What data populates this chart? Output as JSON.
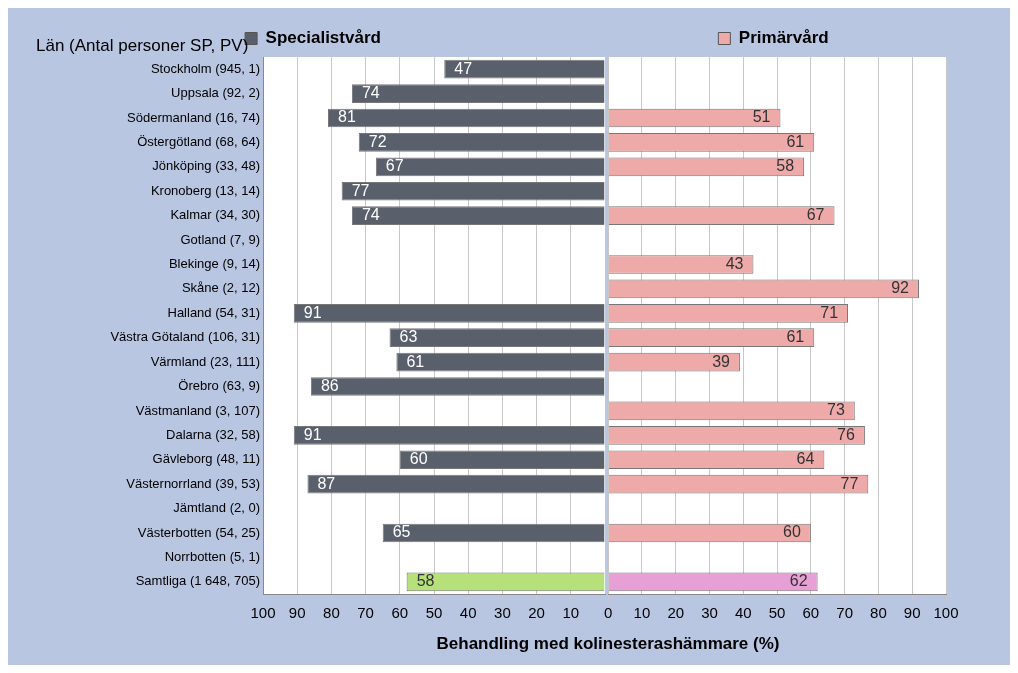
{
  "chart_data": [
    {
      "type": "bar",
      "orientation": "horizontal",
      "ylabel": "Län (Antal personer SP, PV)",
      "xlabel": "Behandling med kolinesterashämmare (%)",
      "categories": [
        "Stockholm (945, 1)",
        "Uppsala (92, 2)",
        "Södermanland (16, 74)",
        "Östergötland (68, 64)",
        "Jönköping (33, 48)",
        "Kronoberg (13, 14)",
        "Kalmar (34, 30)",
        "Gotland (7, 9)",
        "Blekinge (9, 14)",
        "Skåne (2, 12)",
        "Halland (54, 31)",
        "Västra Götaland (106, 31)",
        "Värmland (23, 111)",
        "Örebro (63, 9)",
        "Västmanland (3, 107)",
        "Dalarna (32, 58)",
        "Gävleborg (48, 11)",
        "Västernorrland (39, 53)",
        "Jämtland (2, 0)",
        "Västerbotten (54, 25)",
        "Norrbotten (5, 1)",
        "Samtliga (1 648, 705)"
      ],
      "series": [
        {
          "name": "Specialistvård",
          "color": "#5a606b",
          "colors": [
            "#5a606b",
            "#5a606b",
            "#5a606b",
            "#5a606b",
            "#5a606b",
            "#5a606b",
            "#5a606b",
            "#5a606b",
            "#5a606b",
            "#5a606b",
            "#5a606b",
            "#5a606b",
            "#5a606b",
            "#5a606b",
            "#5a606b",
            "#5a606b",
            "#5a606b",
            "#5a606b",
            "#5a606b",
            "#5a606b",
            "#5a606b",
            "#b5e07a"
          ],
          "values": [
            47,
            74,
            81,
            72,
            67,
            77,
            74,
            null,
            null,
            null,
            91,
            63,
            61,
            86,
            null,
            91,
            60,
            87,
            null,
            65,
            null,
            58
          ]
        }
      ],
      "xlim": [
        100,
        0
      ],
      "xticks": [
        100,
        90,
        80,
        70,
        60,
        50,
        40,
        30,
        20,
        10,
        {
          "value": 0,
          "label": null
        }
      ],
      "data_labels": true,
      "grid": "x",
      "legend": "top"
    },
    {
      "type": "bar",
      "orientation": "horizontal",
      "series": [
        {
          "name": "Primärvård",
          "color": "#eeaaa9",
          "colors": [
            "#eeaaa9",
            "#eeaaa9",
            "#eeaaa9",
            "#eeaaa9",
            "#eeaaa9",
            "#eeaaa9",
            "#eeaaa9",
            "#eeaaa9",
            "#eeaaa9",
            "#eeaaa9",
            "#eeaaa9",
            "#eeaaa9",
            "#eeaaa9",
            "#eeaaa9",
            "#eeaaa9",
            "#eeaaa9",
            "#eeaaa9",
            "#eeaaa9",
            "#eeaaa9",
            "#eeaaa9",
            "#eeaaa9",
            "#e6a0d6"
          ],
          "values": [
            null,
            null,
            51,
            61,
            58,
            null,
            67,
            null,
            43,
            92,
            71,
            61,
            39,
            null,
            73,
            76,
            64,
            77,
            null,
            60,
            null,
            62
          ]
        }
      ],
      "xlim": [
        0,
        100
      ],
      "xticks": [
        0,
        10,
        20,
        30,
        40,
        50,
        60,
        70,
        80,
        90,
        100
      ],
      "data_labels": true,
      "grid": "x",
      "legend": "top",
      "tick_labels": "x"
    }
  ]
}
